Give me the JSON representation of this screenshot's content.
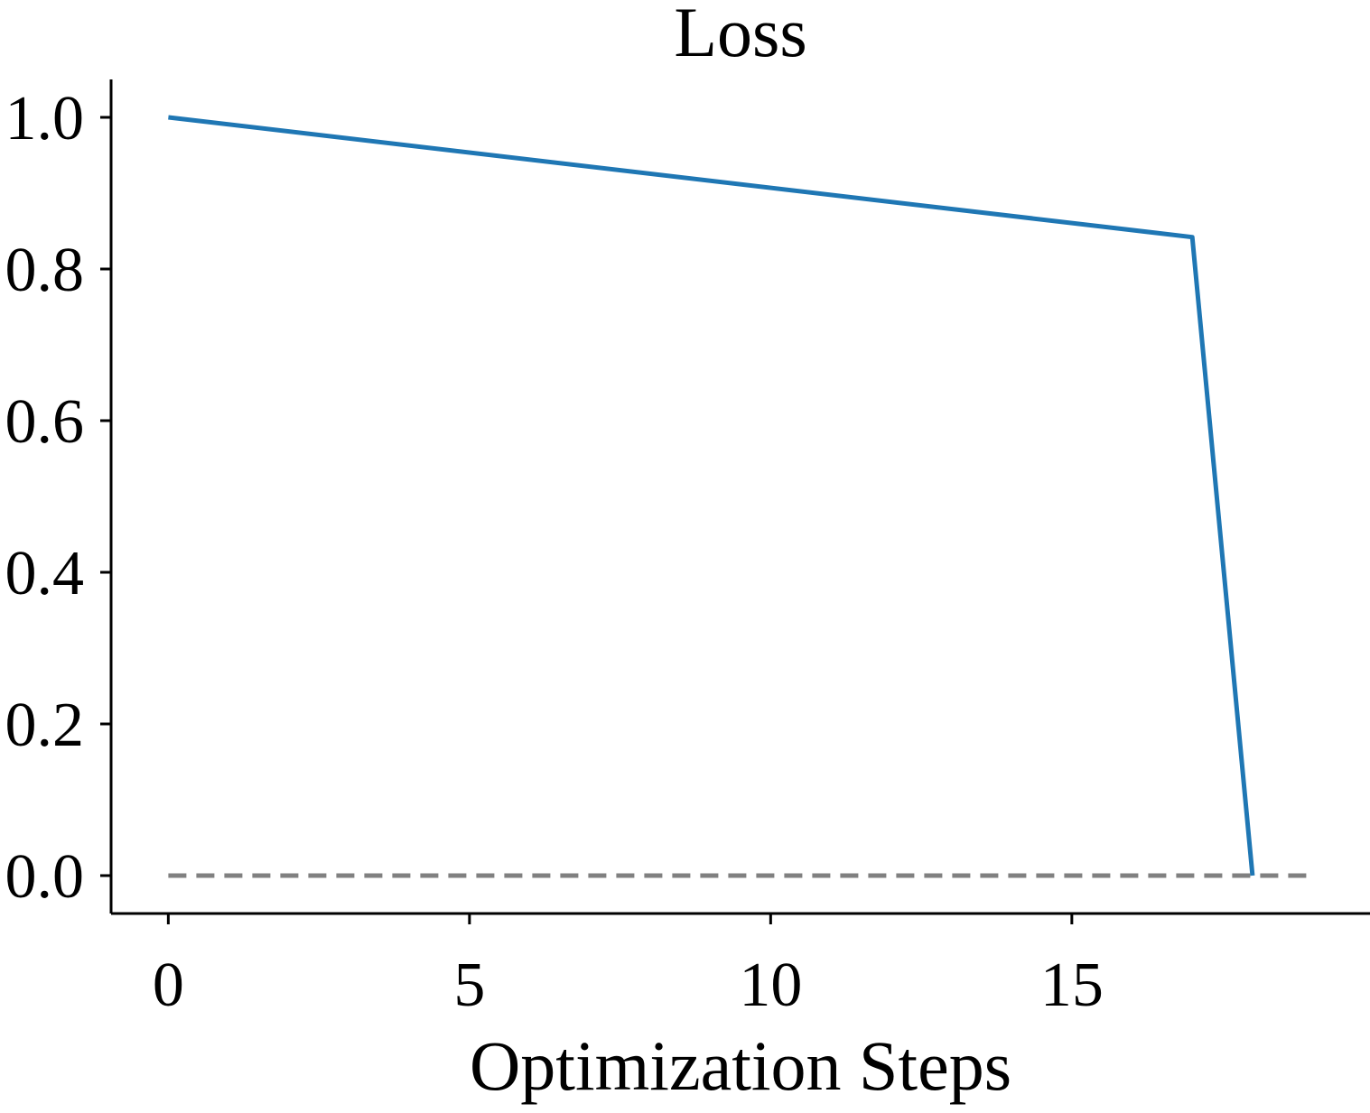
{
  "chart_data": {
    "type": "line",
    "title": "Loss",
    "xlabel": "Optimization Steps",
    "ylabel": "",
    "xlim": [
      -0.95,
      19.95
    ],
    "ylim": [
      -0.05,
      1.05
    ],
    "x_ticks": [
      0,
      5,
      10,
      15
    ],
    "x_tick_labels": [
      "0",
      "5",
      "10",
      "15"
    ],
    "y_ticks": [
      0.0,
      0.2,
      0.4,
      0.6,
      0.8,
      1.0
    ],
    "y_tick_labels": [
      "0.0",
      "0.2",
      "0.4",
      "0.6",
      "0.8",
      "1.0"
    ],
    "grid": false,
    "legend": null,
    "series": [
      {
        "color": "#1f77b4",
        "style": "solid",
        "x": [
          0,
          17,
          18
        ],
        "y": [
          1.0,
          0.842,
          0.0
        ]
      },
      {
        "color": "#808080",
        "style": "dashed",
        "x": [
          0,
          19
        ],
        "y": [
          0.0,
          0.0
        ]
      }
    ]
  }
}
